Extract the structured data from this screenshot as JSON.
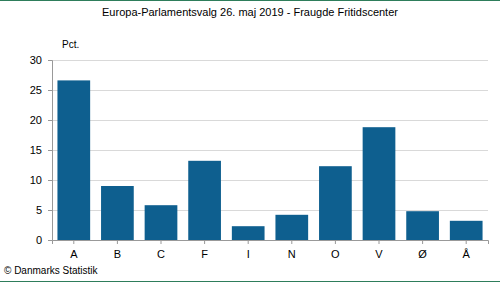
{
  "chart_data": {
    "type": "bar",
    "title": "Europa-Parlamentsvalg 26. maj 2019 - Fraugde Fritidscenter",
    "y_label": "Pct.",
    "annotations": [
      "© Danmarks Statistik"
    ],
    "categories": [
      "A",
      "B",
      "C",
      "F",
      "I",
      "N",
      "O",
      "V",
      "Ø",
      "Å"
    ],
    "values": [
      26.6,
      9.0,
      5.8,
      13.2,
      2.3,
      4.2,
      12.3,
      18.8,
      4.8,
      3.2
    ],
    "color": "#0e5f8f",
    "ylim": [
      0,
      30
    ],
    "yticks": [
      0,
      5,
      10,
      15,
      20,
      25,
      30
    ],
    "grid": true
  }
}
